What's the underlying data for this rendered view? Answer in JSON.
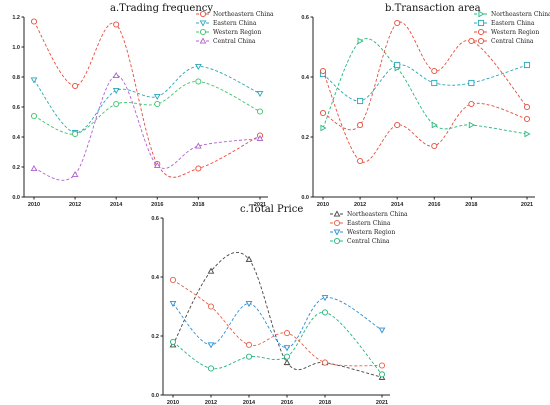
{
  "colors": {
    "northeastern": "#e84c3d",
    "eastern": "#2aa6b8",
    "western": "#3cc46a",
    "central": "#b060d0",
    "c_northeastern": "#444444",
    "c_eastern": "#e8604a",
    "c_western": "#2c8fd6",
    "c_central": "#25b77a"
  },
  "chart_data": [
    {
      "id": "a",
      "type": "line",
      "title": "a.Trading frequency",
      "x": [
        2010,
        2012,
        2014,
        2016,
        2018,
        2021
      ],
      "xticks": [
        "2010",
        "2012",
        "2014",
        "2016",
        "2018",
        "2021"
      ],
      "ylim": [
        0,
        1.2
      ],
      "yticks": [
        "0.0",
        "0.2",
        "0.4",
        "0.6",
        "0.8",
        "1.0",
        "1.2"
      ],
      "legend_position": "top-right",
      "series": [
        {
          "name": "Northeastern China",
          "color_key": "northeastern",
          "marker": "circle",
          "values": [
            1.17,
            0.74,
            1.15,
            0.22,
            0.19,
            0.41
          ]
        },
        {
          "name": "Eastern China",
          "color_key": "eastern",
          "marker": "triangle-down",
          "values": [
            0.78,
            0.43,
            0.71,
            0.67,
            0.87,
            0.69
          ]
        },
        {
          "name": "Western Region",
          "color_key": "western",
          "marker": "circle",
          "values": [
            0.54,
            0.42,
            0.62,
            0.62,
            0.77,
            0.57
          ]
        },
        {
          "name": "Central China",
          "color_key": "central",
          "marker": "triangle-up",
          "values": [
            0.19,
            0.15,
            0.81,
            0.21,
            0.34,
            0.39
          ]
        }
      ]
    },
    {
      "id": "b",
      "type": "line",
      "title": "b.Transaction area",
      "x": [
        2010,
        2012,
        2014,
        2016,
        2018,
        2021
      ],
      "xticks": [
        "2010",
        "2012",
        "2014",
        "2016",
        "2018",
        "2021"
      ],
      "ylim": [
        0,
        0.6
      ],
      "yticks": [
        "0.0",
        "0.2",
        "0.4",
        "0.6"
      ],
      "legend_position": "top-right",
      "series": [
        {
          "name": "Northeastern China",
          "color_key": "c_central",
          "marker": "triangle-right",
          "values": [
            0.23,
            0.52,
            0.43,
            0.24,
            0.24,
            0.21
          ]
        },
        {
          "name": "Eastern China",
          "color_key": "eastern",
          "marker": "square",
          "values": [
            0.41,
            0.32,
            0.44,
            0.38,
            0.38,
            0.44
          ]
        },
        {
          "name": "Western Region",
          "color_key": "northeastern",
          "marker": "circle",
          "values": [
            0.28,
            0.24,
            0.58,
            0.42,
            0.52,
            0.3
          ]
        },
        {
          "name": "Central China",
          "color_key": "northeastern",
          "marker": "circle",
          "values": [
            0.42,
            0.12,
            0.24,
            0.17,
            0.31,
            0.26
          ]
        }
      ]
    },
    {
      "id": "c",
      "type": "line",
      "title": "c.Total Price",
      "x": [
        2010,
        2012,
        2014,
        2016,
        2018,
        2021
      ],
      "xticks": [
        "2010",
        "2012",
        "2014",
        "2016",
        "2018",
        "2021"
      ],
      "ylim": [
        0,
        0.6
      ],
      "yticks": [
        "0.0",
        "0.2",
        "0.4",
        "0.6"
      ],
      "legend_position": "top-right",
      "series": [
        {
          "name": "Northeastern China",
          "color_key": "c_northeastern",
          "marker": "triangle-up",
          "values": [
            0.17,
            0.42,
            0.46,
            0.11,
            0.11,
            0.06
          ]
        },
        {
          "name": "Eastern China",
          "color_key": "c_eastern",
          "marker": "circle",
          "values": [
            0.39,
            0.3,
            0.17,
            0.21,
            0.11,
            0.1
          ]
        },
        {
          "name": "Western Region",
          "color_key": "c_western",
          "marker": "triangle-down",
          "values": [
            0.31,
            0.17,
            0.31,
            0.16,
            0.33,
            0.22
          ]
        },
        {
          "name": "Central China",
          "color_key": "c_central",
          "marker": "circle",
          "values": [
            0.18,
            0.09,
            0.13,
            0.13,
            0.28,
            0.07
          ]
        }
      ]
    }
  ]
}
